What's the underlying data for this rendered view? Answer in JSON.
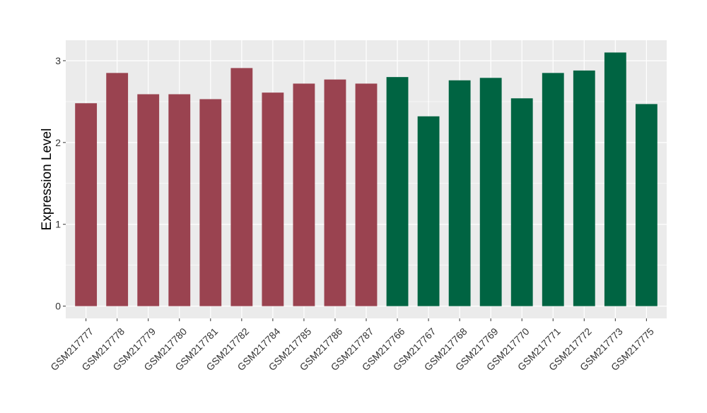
{
  "chart_data": {
    "type": "bar",
    "title": "",
    "xlabel": "",
    "ylabel": "Expression Level",
    "ylim": [
      -0.15,
      3.25
    ],
    "yticks": [
      0,
      1,
      2,
      3
    ],
    "grid": true,
    "legend": "none",
    "categories": [
      "GSM217777",
      "GSM217778",
      "GSM217779",
      "GSM217780",
      "GSM217781",
      "GSM217782",
      "GSM217784",
      "GSM217785",
      "GSM217786",
      "GSM217787",
      "GSM217766",
      "GSM217767",
      "GSM217768",
      "GSM217769",
      "GSM217770",
      "GSM217771",
      "GSM217772",
      "GSM217773",
      "GSM217775"
    ],
    "values": [
      2.48,
      2.85,
      2.59,
      2.59,
      2.53,
      2.91,
      2.61,
      2.72,
      2.77,
      2.72,
      2.8,
      2.32,
      2.76,
      2.79,
      2.54,
      2.85,
      2.88,
      3.1,
      2.47
    ],
    "bar_colors": [
      "#9a4350",
      "#9a4350",
      "#9a4350",
      "#9a4350",
      "#9a4350",
      "#9a4350",
      "#9a4350",
      "#9a4350",
      "#9a4350",
      "#9a4350",
      "#006442",
      "#006442",
      "#006442",
      "#006442",
      "#006442",
      "#006442",
      "#006442",
      "#006442",
      "#006442"
    ],
    "panel_background": "#ebebeb",
    "grid_color": "#ffffff"
  }
}
